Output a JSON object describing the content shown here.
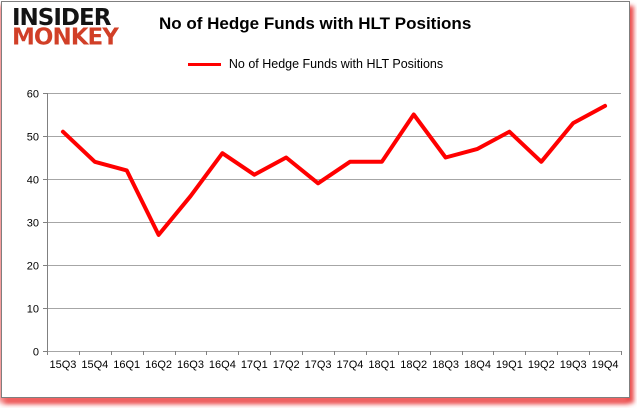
{
  "logo": {
    "line1": "INSIDER",
    "line2": "MONKEY",
    "line1_color": "#141414",
    "line2_color": "#d13f27"
  },
  "chart_data": {
    "type": "line",
    "title": "No of Hedge Funds with HLT Positions",
    "categories": [
      "15Q3",
      "15Q4",
      "16Q1",
      "16Q2",
      "16Q3",
      "16Q4",
      "17Q1",
      "17Q2",
      "17Q3",
      "17Q4",
      "18Q1",
      "18Q2",
      "18Q3",
      "18Q4",
      "19Q1",
      "19Q2",
      "19Q3",
      "19Q4"
    ],
    "series": [
      {
        "name": "No of Hedge Funds with HLT Positions",
        "color": "#FF0000",
        "values": [
          51,
          44,
          42,
          27,
          36,
          46,
          41,
          45,
          39,
          44,
          44,
          55,
          45,
          47,
          51,
          44,
          53,
          57
        ]
      }
    ],
    "xlabel": "",
    "ylabel": "",
    "ylim": [
      0,
      60
    ],
    "yticks": [
      0,
      10,
      20,
      30,
      40,
      50,
      60
    ],
    "grid": true,
    "legend_position": "top-center"
  },
  "colors": {
    "line": "#FF0000",
    "grid": "#a6a6a6",
    "axis": "#808080",
    "background": "#FFFFFF",
    "title": "#000000",
    "shadow_glow": "#e03c31"
  }
}
